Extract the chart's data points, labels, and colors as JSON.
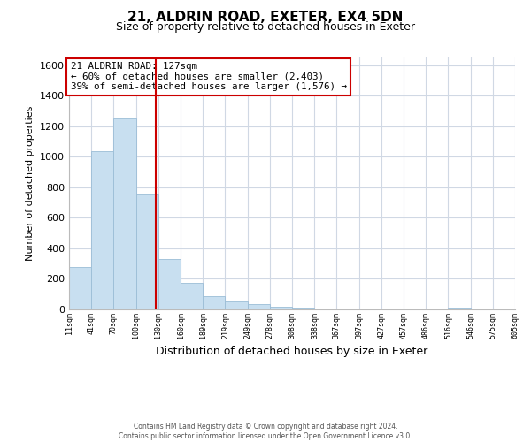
{
  "title_line1": "21, ALDRIN ROAD, EXETER, EX4 5DN",
  "title_line2": "Size of property relative to detached houses in Exeter",
  "xlabel": "Distribution of detached houses by size in Exeter",
  "ylabel": "Number of detached properties",
  "bar_color": "#c8dff0",
  "bar_edgecolor": "#9bbdd6",
  "vline_x": 127,
  "vline_color": "#cc0000",
  "annotation_line1": "21 ALDRIN ROAD: 127sqm",
  "annotation_line2": "← 60% of detached houses are smaller (2,403)",
  "annotation_line3": "39% of semi-detached houses are larger (1,576) →",
  "bin_edges": [
    11,
    41,
    70,
    100,
    130,
    160,
    189,
    219,
    249,
    278,
    308,
    338,
    367,
    397,
    427,
    457,
    486,
    516,
    546,
    575,
    605
  ],
  "bin_heights": [
    280,
    1035,
    1250,
    750,
    330,
    175,
    85,
    50,
    35,
    20,
    10,
    0,
    0,
    0,
    0,
    0,
    0,
    10,
    0,
    0
  ],
  "tick_labels": [
    "11sqm",
    "41sqm",
    "70sqm",
    "100sqm",
    "130sqm",
    "160sqm",
    "189sqm",
    "219sqm",
    "249sqm",
    "278sqm",
    "308sqm",
    "338sqm",
    "367sqm",
    "397sqm",
    "427sqm",
    "457sqm",
    "486sqm",
    "516sqm",
    "546sqm",
    "575sqm",
    "605sqm"
  ],
  "ylim": [
    0,
    1650
  ],
  "yticks": [
    0,
    200,
    400,
    600,
    800,
    1000,
    1200,
    1400,
    1600
  ],
  "footer_line1": "Contains HM Land Registry data © Crown copyright and database right 2024.",
  "footer_line2": "Contains public sector information licensed under the Open Government Licence v3.0.",
  "background_color": "#ffffff",
  "grid_color": "#d0d8e4"
}
